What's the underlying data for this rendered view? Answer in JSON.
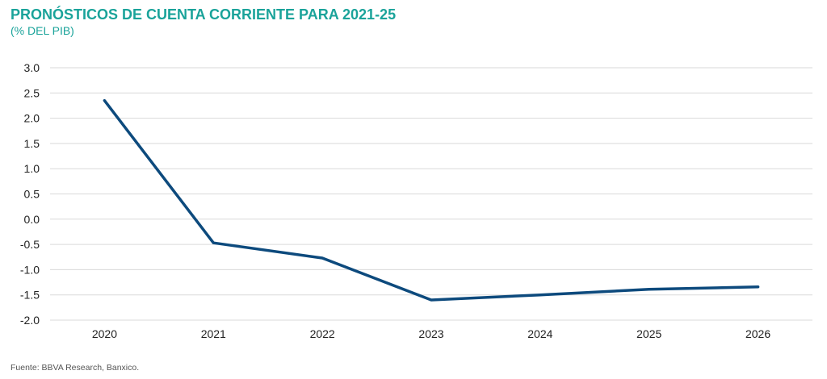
{
  "title": "PRONÓSTICOS DE CUENTA CORRIENTE PARA 2021-25",
  "subtitle": "(% DEL PIB)",
  "source": "Fuente: BBVA Research, Banxico.",
  "colors": {
    "title": "#1aa39a",
    "line": "#0d4a7d",
    "grid": "#d9d9d9"
  },
  "chart_data": {
    "type": "line",
    "title": "PRONÓSTICOS DE CUENTA CORRIENTE PARA 2021-25",
    "subtitle": "(% DEL PIB)",
    "xlabel": "",
    "ylabel": "",
    "categories": [
      "2020",
      "2021",
      "2022",
      "2023",
      "2024",
      "2025",
      "2026"
    ],
    "series": [
      {
        "values": [
          2.35,
          -0.47,
          -0.77,
          -1.6,
          -1.5,
          -1.39,
          -1.34
        ]
      }
    ],
    "yticks": [
      "3.0",
      "2.5",
      "2.0",
      "1.5",
      "1.0",
      "0.5",
      "0.0",
      "-0.5",
      "-1.0",
      "-1.5",
      "-2.0"
    ],
    "ylim": [
      -2.0,
      3.0
    ],
    "grid": true,
    "legend": "none"
  }
}
